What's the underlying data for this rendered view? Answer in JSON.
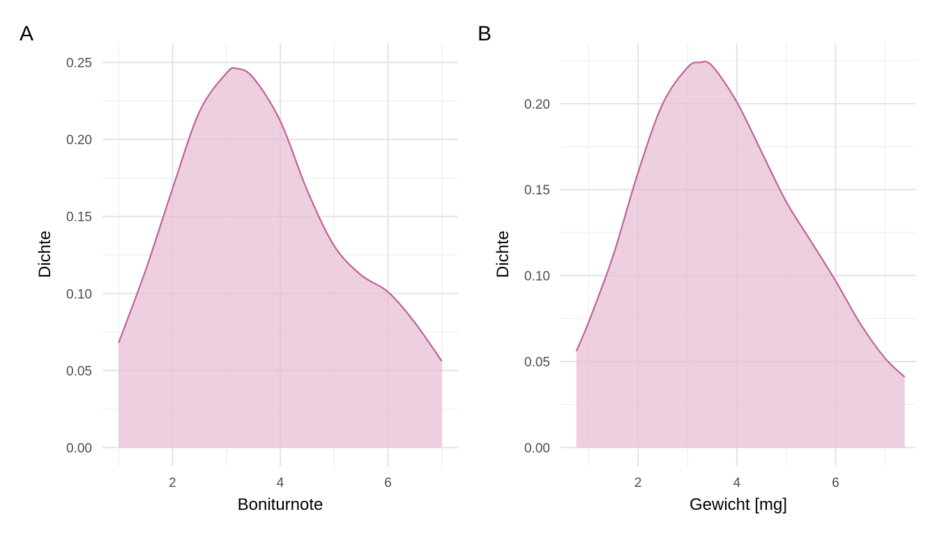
{
  "chart_data": [
    {
      "type": "area",
      "panel_label": "A",
      "xlabel": "Boniturnote",
      "ylabel": "Dichte",
      "xlim": [
        0.7,
        7.3
      ],
      "ylim": [
        -0.0125,
        0.2625
      ],
      "x_ticks": [
        2,
        4,
        6
      ],
      "y_ticks": [
        0.0,
        0.05,
        0.1,
        0.15,
        0.2,
        0.25
      ],
      "y_tick_labels": [
        "0.00",
        "0.05",
        "0.10",
        "0.15",
        "0.20",
        "0.25"
      ],
      "grid": true,
      "colors": {
        "line": "#c0609a",
        "fill": "#e6bcd3"
      },
      "x": [
        1.0,
        1.5,
        2.0,
        2.5,
        3.0,
        3.2,
        3.5,
        4.0,
        4.5,
        5.0,
        5.5,
        6.0,
        6.5,
        7.0
      ],
      "y": [
        0.068,
        0.115,
        0.168,
        0.218,
        0.243,
        0.246,
        0.24,
        0.212,
        0.167,
        0.131,
        0.112,
        0.101,
        0.081,
        0.056
      ]
    },
    {
      "type": "area",
      "panel_label": "B",
      "xlabel": "Gewicht [mg]",
      "ylabel": "Dichte",
      "xlim": [
        0.43,
        7.63
      ],
      "ylim": [
        -0.0112,
        0.2352
      ],
      "x_ticks": [
        2,
        4,
        6
      ],
      "y_ticks": [
        0.0,
        0.05,
        0.1,
        0.15,
        0.2
      ],
      "y_tick_labels": [
        "0.00",
        "0.05",
        "0.10",
        "0.15",
        "0.20"
      ],
      "grid": true,
      "colors": {
        "line": "#c0609a",
        "fill": "#e6bcd3"
      },
      "x": [
        0.75,
        1.0,
        1.5,
        2.0,
        2.5,
        3.0,
        3.25,
        3.5,
        4.0,
        4.5,
        5.0,
        5.5,
        6.0,
        6.5,
        7.0,
        7.4
      ],
      "y": [
        0.056,
        0.073,
        0.112,
        0.16,
        0.2,
        0.221,
        0.224,
        0.222,
        0.201,
        0.172,
        0.143,
        0.12,
        0.097,
        0.072,
        0.052,
        0.041
      ]
    }
  ]
}
